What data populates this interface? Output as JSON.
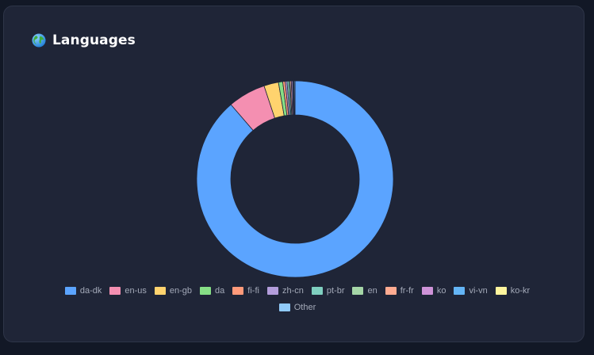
{
  "card": {
    "title": "Languages",
    "title_icon": "globe-icon"
  },
  "chart_data": {
    "type": "pie",
    "variant": "doughnut",
    "categories": [
      "da-dk",
      "en-us",
      "en-gb",
      "da",
      "fi-fi",
      "zh-cn",
      "pt-br",
      "en",
      "fr-fr",
      "ko",
      "vi-vn",
      "ko-kr",
      "Other"
    ],
    "values": [
      88.7,
      6.2,
      2.4,
      0.7,
      0.4,
      0.3,
      0.3,
      0.2,
      0.2,
      0.2,
      0.15,
      0.1,
      0.15
    ],
    "colors": [
      "#5ba4ff",
      "#f48fb1",
      "#ffd36e",
      "#86df86",
      "#ff9a7a",
      "#b39ddb",
      "#7fcfc0",
      "#a5d6a7",
      "#ffab91",
      "#ce93d8",
      "#64b5f6",
      "#fff59d",
      "#90caf9"
    ],
    "legend_position": "bottom"
  }
}
